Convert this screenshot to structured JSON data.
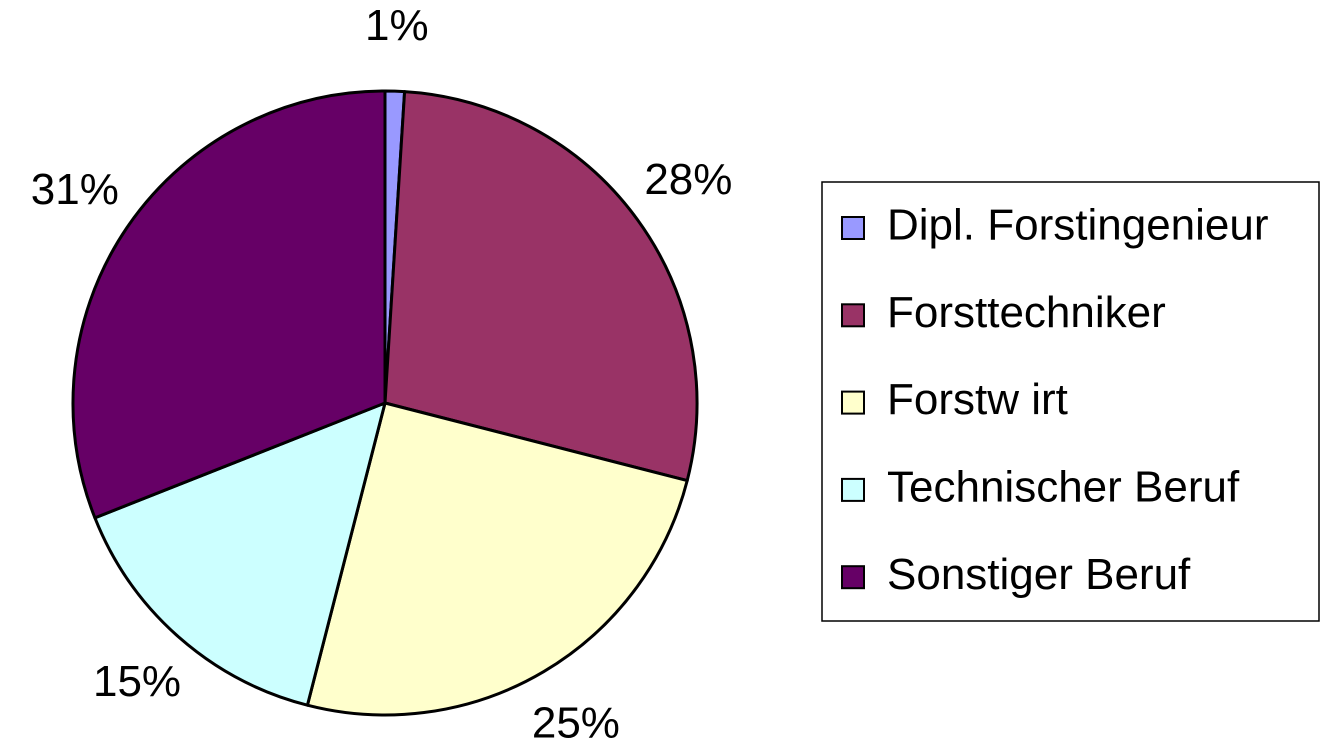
{
  "chart_data": {
    "type": "pie",
    "categories": [
      "Dipl. Forstingenieur",
      "Forsttechniker",
      "Forstw irt",
      "Technischer Beruf",
      "Sonstiger Beruf"
    ],
    "values": [
      1,
      28,
      25,
      15,
      31
    ],
    "value_labels": [
      "1%",
      "28%",
      "25%",
      "15%",
      "31%"
    ],
    "colors": [
      "#9999ff",
      "#993366",
      "#ffffcc",
      "#ccffff",
      "#660066"
    ],
    "legend": "right"
  }
}
